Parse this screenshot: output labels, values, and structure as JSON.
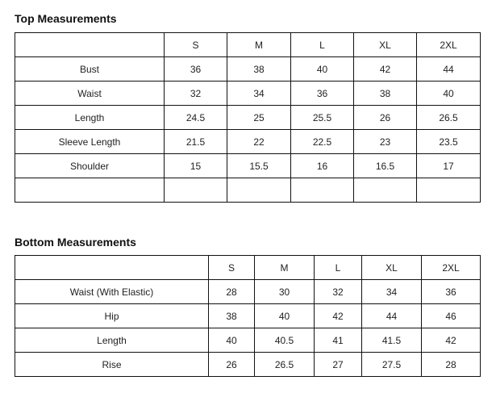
{
  "top": {
    "title": "Top Measurements",
    "headers": [
      "",
      "S",
      "M",
      "L",
      "XL",
      "2XL"
    ],
    "rows": [
      [
        "Bust",
        "36",
        "38",
        "40",
        "42",
        "44"
      ],
      [
        "Waist",
        "32",
        "34",
        "36",
        "38",
        "40"
      ],
      [
        "Length",
        "24.5",
        "25",
        "25.5",
        "26",
        "26.5"
      ],
      [
        "Sleeve Length",
        "21.5",
        "22",
        "22.5",
        "23",
        "23.5"
      ],
      [
        "Shoulder",
        "15",
        "15.5",
        "16",
        "16.5",
        "17"
      ],
      [
        "",
        "",
        "",
        "",
        "",
        ""
      ]
    ]
  },
  "bottom": {
    "title": "Bottom Measurements",
    "headers": [
      "",
      "S",
      "M",
      "L",
      "XL",
      "2XL"
    ],
    "rows": [
      [
        "Waist (With Elastic)",
        "28",
        "30",
        "32",
        "34",
        "36"
      ],
      [
        "Hip",
        "38",
        "40",
        "42",
        "44",
        "46"
      ],
      [
        "Length",
        "40",
        "40.5",
        "41",
        "41.5",
        "42"
      ],
      [
        "Rise",
        "26",
        "26.5",
        "27",
        "27.5",
        "28"
      ]
    ]
  }
}
